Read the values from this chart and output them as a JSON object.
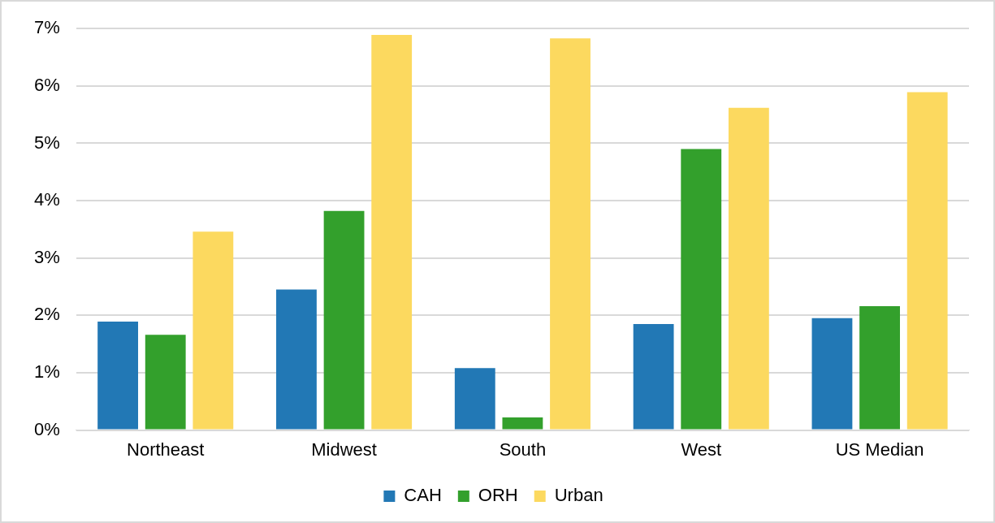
{
  "chart_data": {
    "type": "bar",
    "categories": [
      "Northeast",
      "Midwest",
      "South",
      "West",
      "US Median"
    ],
    "series": [
      {
        "name": "CAH",
        "color": "#2278b5",
        "values": [
          1.89,
          2.45,
          1.08,
          1.85,
          1.95
        ]
      },
      {
        "name": "ORH",
        "color": "#33a02c",
        "values": [
          1.66,
          3.82,
          0.22,
          4.9,
          2.16
        ]
      },
      {
        "name": "Urban",
        "color": "#fcd95f",
        "values": [
          3.46,
          6.89,
          6.83,
          5.62,
          5.89
        ]
      }
    ],
    "ylim": [
      0,
      7
    ],
    "yticks": [
      {
        "value": 0,
        "label": "0%"
      },
      {
        "value": 1,
        "label": "1%"
      },
      {
        "value": 2,
        "label": "2%"
      },
      {
        "value": 3,
        "label": "3%"
      },
      {
        "value": 4,
        "label": "4%"
      },
      {
        "value": 5,
        "label": "5%"
      },
      {
        "value": 6,
        "label": "6%"
      },
      {
        "value": 7,
        "label": "7%"
      }
    ],
    "grid": "y",
    "legend": "bottom"
  }
}
